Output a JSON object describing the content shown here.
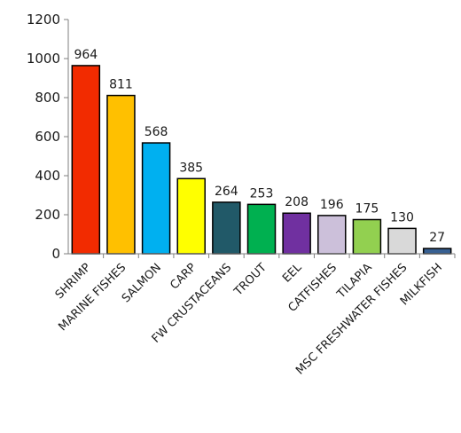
{
  "chart_data": {
    "type": "bar",
    "title": "",
    "xlabel": "",
    "ylabel": "",
    "ylim": [
      0,
      1200
    ],
    "yticks": [
      0,
      200,
      400,
      600,
      800,
      1000,
      1200
    ],
    "grid": false,
    "legend": "none",
    "categories": [
      "SHRIMP",
      "MARINE FISHES",
      "SALMON",
      "CARP",
      "FW CRUSTACEANS",
      "TROUT",
      "EEL",
      "CATFISHES",
      "TILAPIA",
      "MSC FRESHWATER FISHES",
      "MILKFISH"
    ],
    "values": [
      964,
      811,
      568,
      385,
      264,
      253,
      208,
      196,
      175,
      130,
      27
    ],
    "data_labels": [
      "964",
      "811",
      "568",
      "385",
      "264",
      "253",
      "208",
      "196",
      "175",
      "130",
      "27"
    ],
    "colors": [
      "#f22b00",
      "#ffc000",
      "#00b0f0",
      "#ffff00",
      "#215968",
      "#00b050",
      "#7030a0",
      "#ccc0da",
      "#92d050",
      "#d9d9d9",
      "#376092"
    ]
  }
}
